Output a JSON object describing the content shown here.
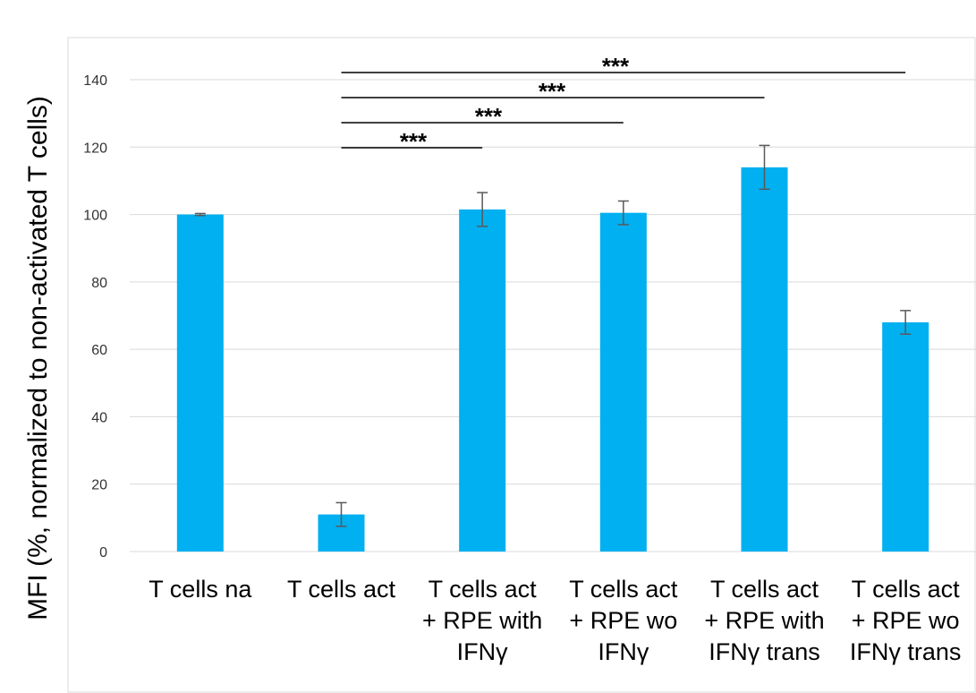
{
  "chart_data": {
    "type": "bar",
    "ylabel": "MFI (%, normalized to non-activated T cells)",
    "ylim": [
      0,
      140
    ],
    "yticks": [
      0,
      20,
      40,
      60,
      80,
      100,
      120,
      140
    ],
    "grid": true,
    "bar_color": "#00b0f0",
    "categories": [
      [
        "T cells na"
      ],
      [
        "T cells act"
      ],
      [
        "T cells act",
        "+ RPE with",
        "IFNγ"
      ],
      [
        "T cells act",
        "+ RPE wo",
        "IFNγ"
      ],
      [
        "T cells act",
        "+ RPE with",
        "IFNγ trans"
      ],
      [
        "T cells act",
        "+ RPE wo",
        "IFNγ trans"
      ]
    ],
    "values": [
      100,
      11,
      101.5,
      100.5,
      114,
      68
    ],
    "errors": [
      0.3,
      3.5,
      5,
      3.5,
      6.5,
      3.5
    ],
    "significance": [
      {
        "from": 1,
        "to": 2,
        "label": "***"
      },
      {
        "from": 1,
        "to": 3,
        "label": "***"
      },
      {
        "from": 1,
        "to": 4,
        "label": "***"
      },
      {
        "from": 1,
        "to": 5,
        "label": "***"
      }
    ]
  }
}
